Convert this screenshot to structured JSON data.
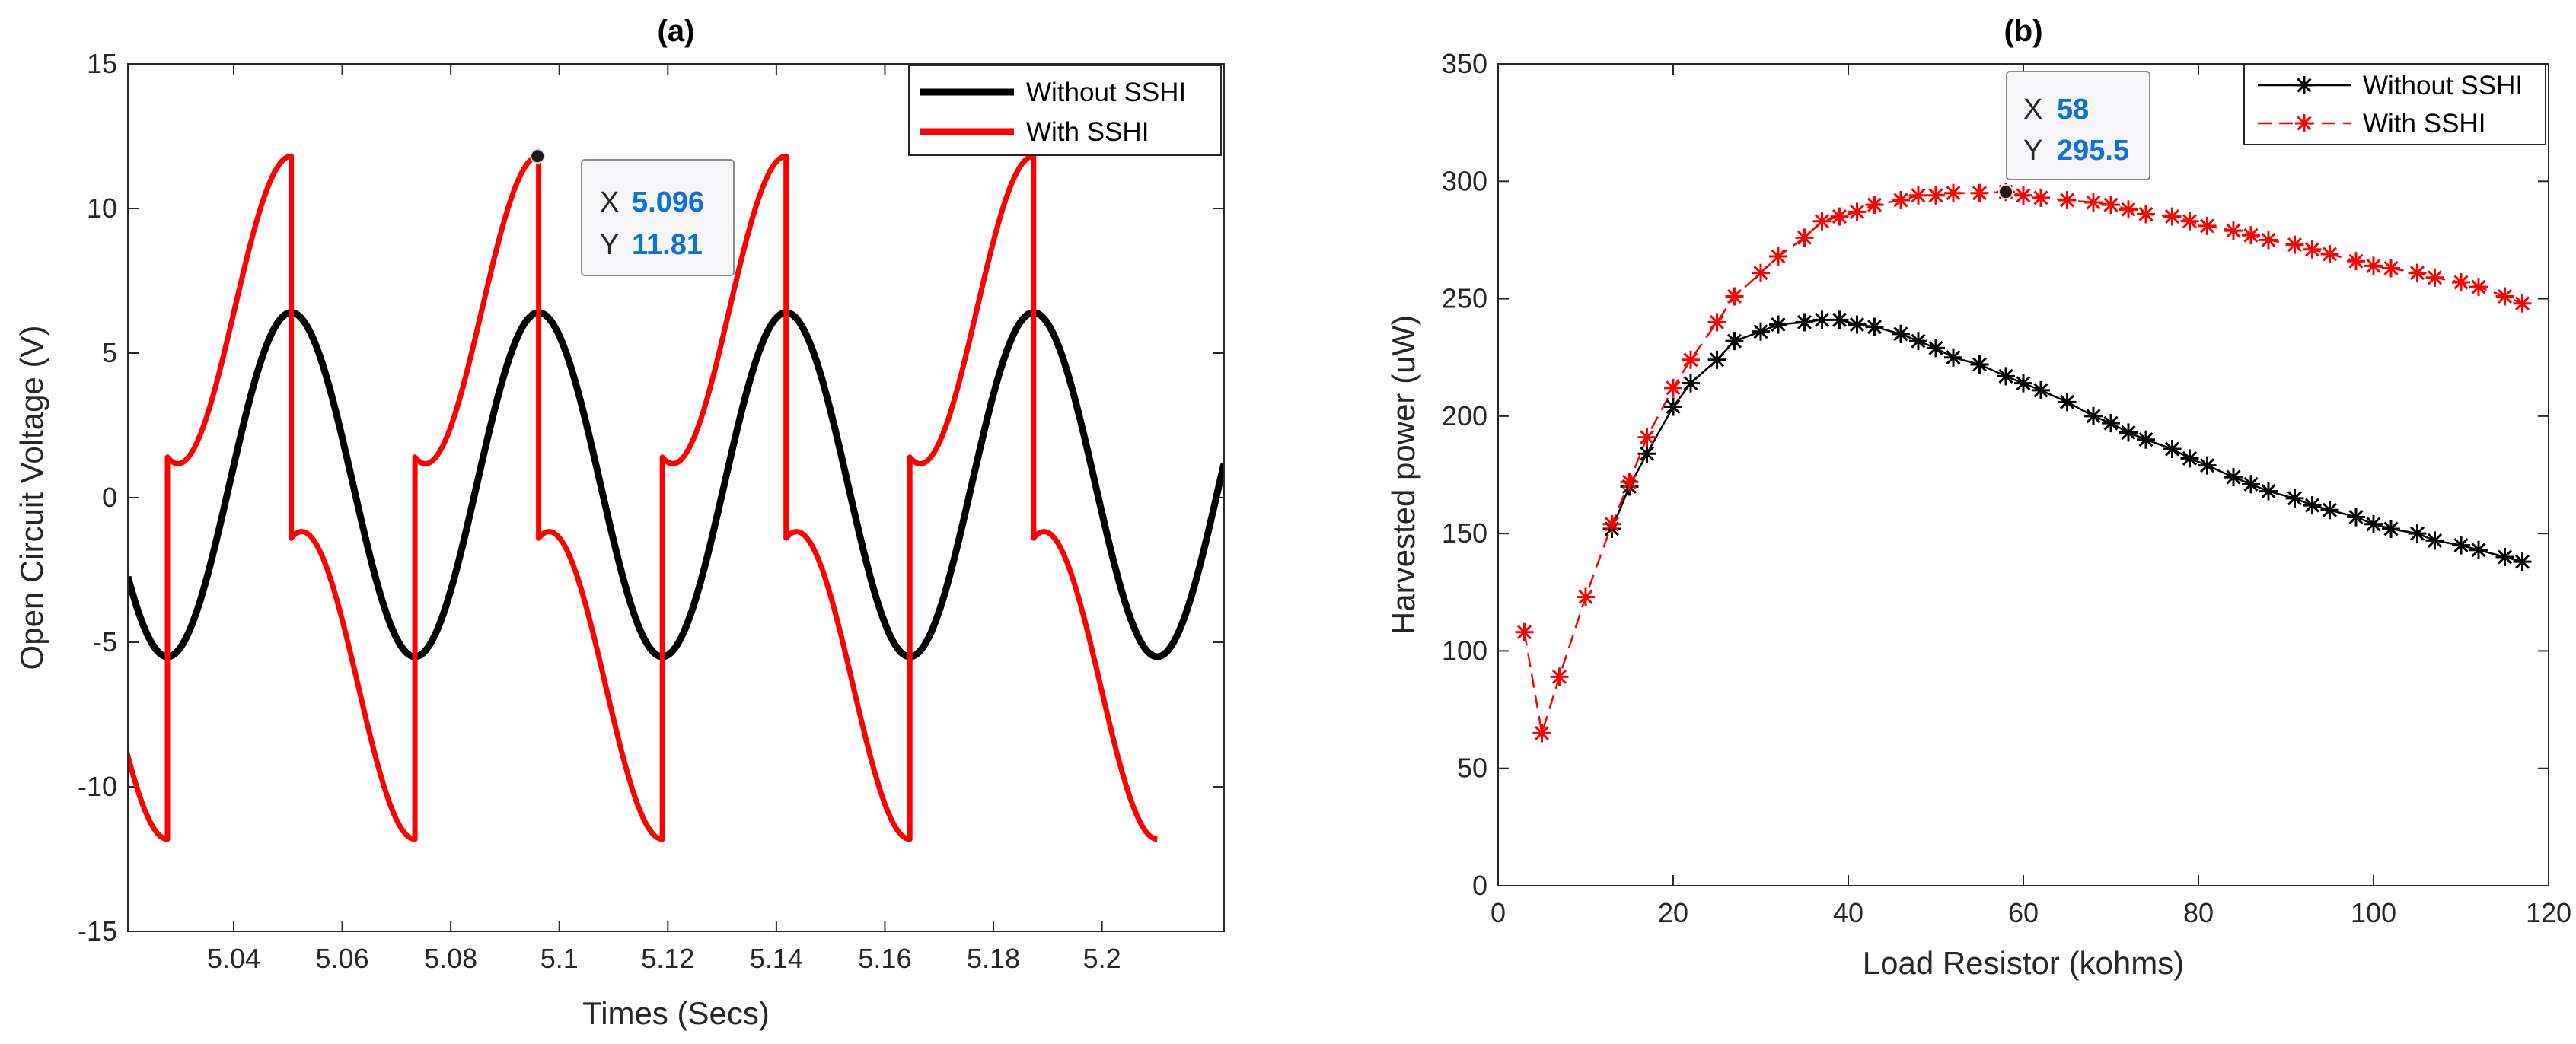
{
  "chart_data": [
    {
      "type": "line",
      "title": "(a)",
      "xlabel": "Times (Secs)",
      "ylabel": "Open Circuit Voltage (V)",
      "xlim": [
        5.0205,
        5.2225
      ],
      "ylim": [
        -15,
        15
      ],
      "xticks": [
        5.04,
        5.06,
        5.08,
        5.1,
        5.12,
        5.14,
        5.16,
        5.18,
        5.2
      ],
      "xtick_labels": [
        "5.04",
        "5.06",
        "5.08",
        "5.1",
        "5.12",
        "5.14",
        "5.16",
        "5.18",
        "5.2"
      ],
      "yticks": [
        -15,
        -10,
        -5,
        0,
        5,
        10,
        15
      ],
      "ytick_labels": [
        "-15",
        "-10",
        "-5",
        "0",
        "5",
        "10",
        "15"
      ],
      "legend_position": "top-right",
      "series": [
        {
          "name": "Without SSHI",
          "color": "#000000",
          "model": "sinusoid",
          "period": 0.0456,
          "amplitude": 5.95,
          "offset": 0.45,
          "peak_at": 5.0506
        },
        {
          "name": "With SSHI",
          "color": "#ff0000",
          "model": "sshi-sawtooth",
          "period": 0.0456,
          "peak": 11.81,
          "trough": -11.81,
          "flip_high": 1.4,
          "flip_low": -1.4,
          "flip_times_high_to_low": [
            5.0506,
            5.0962,
            5.1418,
            5.1874
          ],
          "flip_times_low_to_high": [
            5.0278,
            5.0734,
            5.119,
            5.1646
          ]
        }
      ],
      "datatip": {
        "x_label": "X",
        "x_value": "5.096",
        "y_label": "Y",
        "y_value": "11.81",
        "x": 5.096,
        "y": 11.81
      }
    },
    {
      "type": "line",
      "title": "(b)",
      "xlabel": "Load Resistor (kohms)",
      "ylabel": "Harvested power (uW)",
      "xlim": [
        0,
        120
      ],
      "ylim": [
        0,
        350
      ],
      "xticks": [
        0,
        20,
        40,
        60,
        80,
        100,
        120
      ],
      "xtick_labels": [
        "0",
        "20",
        "40",
        "60",
        "80",
        "100",
        "120"
      ],
      "yticks": [
        0,
        50,
        100,
        150,
        200,
        250,
        300,
        350
      ],
      "ytick_labels": [
        "0",
        "50",
        "100",
        "150",
        "200",
        "250",
        "300",
        "350"
      ],
      "legend_position": "top-right",
      "series": [
        {
          "name": "Without SSHI",
          "color": "#000000",
          "line": "solid",
          "marker": "*",
          "x": [
            13,
            15,
            17,
            20,
            22,
            25,
            27,
            30,
            32,
            35,
            37,
            39,
            41,
            43,
            46,
            48,
            50,
            52,
            55,
            58,
            60,
            62,
            65,
            68,
            70,
            72,
            74,
            77,
            79,
            81,
            84,
            86,
            88,
            91,
            93,
            95,
            98,
            100,
            102,
            105,
            107,
            110,
            112,
            115,
            117
          ],
          "y": [
            152,
            170,
            184,
            204,
            214,
            224,
            232,
            236,
            239,
            240,
            241,
            241,
            239,
            238,
            235,
            232,
            229,
            225,
            222,
            217,
            214,
            211,
            206,
            200,
            197,
            193,
            190,
            186,
            182,
            179,
            174,
            171,
            168,
            165,
            162,
            160,
            157,
            154,
            152,
            150,
            147,
            145,
            143,
            140,
            138
          ]
        },
        {
          "name": "With SSHI",
          "color": "#ff0000",
          "line": "dashed",
          "marker": "*",
          "x": [
            3,
            5,
            7,
            10,
            13,
            15,
            17,
            20,
            22,
            25,
            27,
            30,
            32,
            35,
            37,
            39,
            41,
            43,
            46,
            48,
            50,
            52,
            55,
            58,
            60,
            62,
            65,
            68,
            70,
            72,
            74,
            77,
            79,
            81,
            84,
            86,
            88,
            91,
            93,
            95,
            98,
            100,
            102,
            105,
            107,
            110,
            112,
            115,
            117
          ],
          "y": [
            108,
            65,
            89,
            123,
            154,
            172,
            191,
            212,
            224,
            240,
            251,
            261,
            268,
            276,
            283,
            285,
            287,
            290,
            292,
            294,
            294,
            295,
            295,
            295.5,
            294,
            293,
            292,
            291,
            290,
            288,
            286,
            285,
            283,
            281,
            279,
            277,
            275,
            273,
            271,
            269,
            266,
            264,
            263,
            261,
            259,
            257,
            255,
            251,
            248
          ]
        }
      ],
      "datatip": {
        "x_label": "X",
        "x_value": "58",
        "y_label": "Y",
        "y_value": "295.5",
        "x": 58,
        "y": 295.5
      }
    }
  ]
}
